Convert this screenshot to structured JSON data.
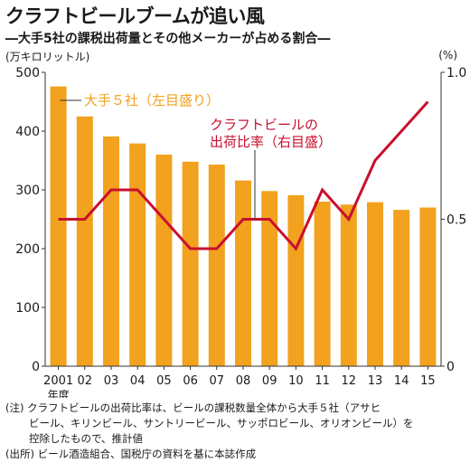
{
  "header": {
    "title": "クラフトビールブームが追い風",
    "subtitle": "―大手5社の課税出荷量とその他メーカーが占める割合―"
  },
  "axes": {
    "left_unit": "(万キロリットル)",
    "right_unit": "(%)",
    "year_suffix": "年度"
  },
  "chart_data": {
    "type": "bar",
    "title": "クラフトビールブームが追い風",
    "categories": [
      "2001",
      "02",
      "03",
      "04",
      "05",
      "06",
      "07",
      "08",
      "09",
      "10",
      "11",
      "12",
      "13",
      "14",
      "15"
    ],
    "yticks": [
      "0",
      "100",
      "200",
      "300",
      "400",
      "500"
    ],
    "y2ticks": [
      "0",
      "0.5",
      "1.0"
    ],
    "ylim": [
      0,
      500
    ],
    "y2lim": [
      0,
      1.0
    ],
    "series": [
      {
        "name": "大手５社（左目盛り）",
        "type": "bar",
        "axis": "left",
        "color": "#F2A21E",
        "values": [
          476,
          425,
          391,
          379,
          360,
          348,
          343,
          316,
          298,
          291,
          280,
          275,
          279,
          266,
          270
        ]
      },
      {
        "name": "クラフトビールの出荷比率（右目盛）",
        "label_lines": [
          "クラフトビールの",
          "出荷比率（右目盛）"
        ],
        "type": "line",
        "axis": "right",
        "color": "#C8102E",
        "values": [
          0.5,
          0.5,
          0.6,
          0.6,
          0.5,
          0.4,
          0.4,
          0.5,
          0.5,
          0.4,
          0.6,
          0.5,
          0.7,
          0.8,
          0.9
        ]
      }
    ],
    "grid": false,
    "legend": "inline"
  },
  "notes": {
    "note_line1": "(注) クラフトビールの出荷比率は、ビールの課税数量全体から大手５社（アサヒ",
    "note_line2": "ビール、キリンビール、サントリービール、サッポロビール、オリオンビール）を",
    "note_line3": "控除したもので、推計値",
    "source": "(出所) ビール酒造組合、国税庁の資料を基に本誌作成"
  }
}
